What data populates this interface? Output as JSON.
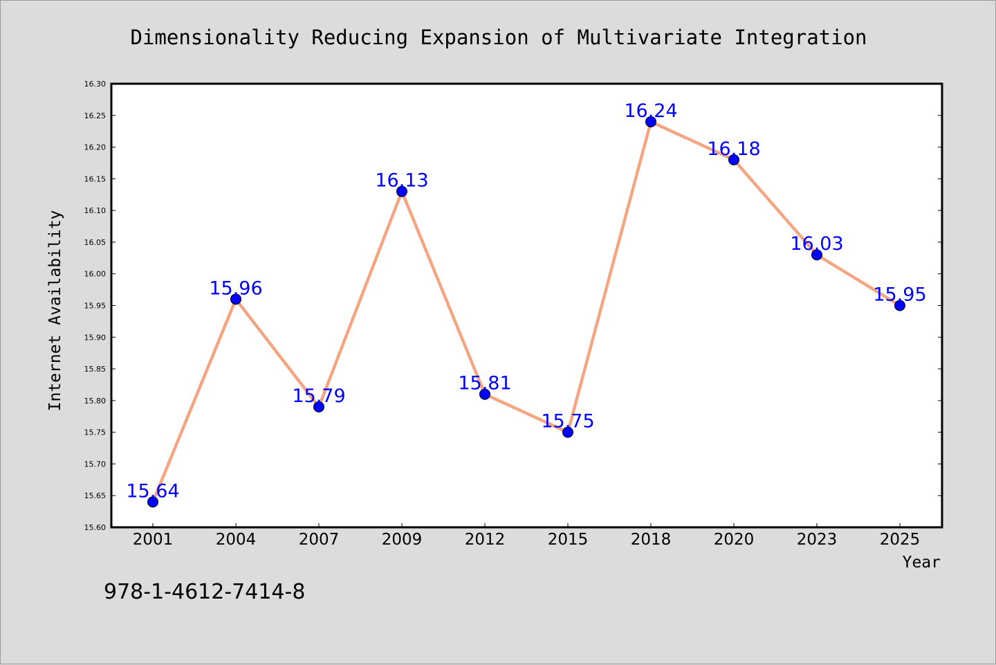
{
  "chart_data": {
    "type": "line",
    "title": "Dimensionality Reducing Expansion of Multivariate Integration",
    "xlabel": "Year",
    "ylabel": "Internet Availability",
    "categories": [
      "2001",
      "2004",
      "2007",
      "2009",
      "2012",
      "2015",
      "2018",
      "2020",
      "2023",
      "2025"
    ],
    "values": [
      15.64,
      15.96,
      15.79,
      16.13,
      15.81,
      15.75,
      16.24,
      16.18,
      16.03,
      15.95
    ],
    "data_labels": [
      "15.64",
      "15.96",
      "15.79",
      "16.13",
      "15.81",
      "15.75",
      "16.24",
      "16.18",
      "16.03",
      "15.95"
    ],
    "ylim": [
      15.6,
      16.3
    ],
    "yticks": [
      "15.60",
      "15.65",
      "15.70",
      "15.75",
      "15.80",
      "15.85",
      "15.90",
      "15.95",
      "16.00",
      "16.05",
      "16.10",
      "16.15",
      "16.20",
      "16.25",
      "16.30"
    ],
    "grid": false,
    "legend": "none",
    "colors": {
      "line": "#f4a582",
      "marker": "#0000ff",
      "label": "#0000ff",
      "background": "#dcdcdc",
      "plot_bg": "#ffffff"
    }
  },
  "footer": {
    "isbn": "978-1-4612-7414-8"
  }
}
